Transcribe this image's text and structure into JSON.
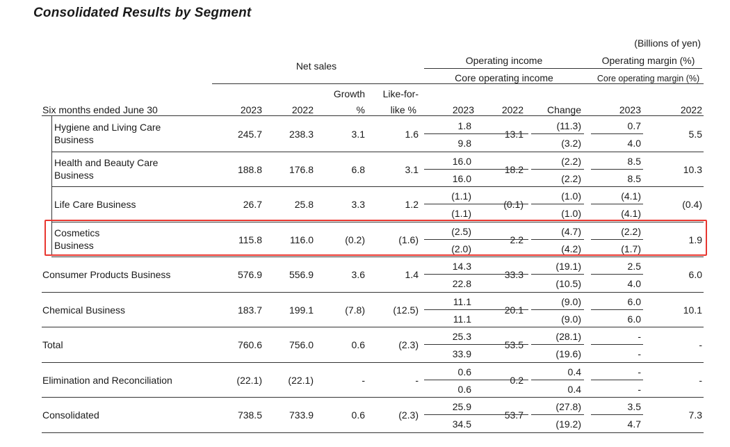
{
  "title": "Consolidated Results by Segment",
  "unit_note": "(Billions of yen)",
  "headers": {
    "net_sales": "Net sales",
    "operating_income": "Operating income",
    "core_operating_income": "Core operating income",
    "operating_margin": "Operating margin (%)",
    "core_operating_margin": "Core operating margin (%)",
    "growth_line1": "Growth",
    "growth_line2": "%",
    "lfl_line1": "Like-for-",
    "lfl_line2": "like %",
    "period": "Six months ended June 30",
    "y2023": "2023",
    "y2022": "2022",
    "oi_2023": "2023",
    "oi_2022": "2022",
    "change": "Change",
    "om_2023": "2023",
    "om_2022": "2022"
  },
  "rows": [
    {
      "label1": "Hygiene and Living Care",
      "label2": "Business",
      "ns2023": "245.7",
      "ns2022": "238.3",
      "growth": "3.1",
      "lfl": "1.6",
      "oi2023": "1.8",
      "coi2023": "9.8",
      "oi2022": "13.1",
      "change": "(11.3)",
      "core_change": "(3.2)",
      "om2023": "0.7",
      "com2023": "4.0",
      "om2022": "5.5"
    },
    {
      "label1": "Health and Beauty Care",
      "label2": "Business",
      "ns2023": "188.8",
      "ns2022": "176.8",
      "growth": "6.8",
      "lfl": "3.1",
      "oi2023": "16.0",
      "coi2023": "16.0",
      "oi2022": "18.2",
      "change": "(2.2)",
      "core_change": "(2.2)",
      "om2023": "8.5",
      "com2023": "8.5",
      "om2022": "10.3"
    },
    {
      "label1": "Life Care Business",
      "label2": "",
      "ns2023": "26.7",
      "ns2022": "25.8",
      "growth": "3.3",
      "lfl": "1.2",
      "oi2023": "(1.1)",
      "coi2023": "(1.1)",
      "oi2022": "(0.1)",
      "change": "(1.0)",
      "core_change": "(1.0)",
      "om2023": "(4.1)",
      "com2023": "(4.1)",
      "om2022": "(0.4)"
    },
    {
      "label1": "Cosmetics",
      "label2": "Business",
      "ns2023": "115.8",
      "ns2022": "116.0",
      "growth": "(0.2)",
      "lfl": "(1.6)",
      "oi2023": "(2.5)",
      "coi2023": "(2.0)",
      "oi2022": "2.2",
      "change": "(4.7)",
      "core_change": "(4.2)",
      "om2023": "(2.2)",
      "com2023": "(1.7)",
      "om2022": "1.9"
    },
    {
      "label1": "Consumer Products Business",
      "label2": "",
      "ns2023": "576.9",
      "ns2022": "556.9",
      "growth": "3.6",
      "lfl": "1.4",
      "oi2023": "14.3",
      "coi2023": "22.8",
      "oi2022": "33.3",
      "change": "(19.1)",
      "core_change": "(10.5)",
      "om2023": "2.5",
      "com2023": "4.0",
      "om2022": "6.0"
    },
    {
      "label1": "Chemical Business",
      "label2": "",
      "ns2023": "183.7",
      "ns2022": "199.1",
      "growth": "(7.8)",
      "lfl": "(12.5)",
      "oi2023": "11.1",
      "coi2023": "11.1",
      "oi2022": "20.1",
      "change": "(9.0)",
      "core_change": "(9.0)",
      "om2023": "6.0",
      "com2023": "6.0",
      "om2022": "10.1"
    },
    {
      "label1": "Total",
      "label2": "",
      "ns2023": "760.6",
      "ns2022": "756.0",
      "growth": "0.6",
      "lfl": "(2.3)",
      "oi2023": "25.3",
      "coi2023": "33.9",
      "oi2022": "53.5",
      "change": "(28.1)",
      "core_change": "(19.6)",
      "om2023": "-",
      "com2023": "-",
      "om2022": "-"
    },
    {
      "label1": "Elimination and Reconciliation",
      "label2": "",
      "ns2023": "(22.1)",
      "ns2022": "(22.1)",
      "growth": "-",
      "lfl": "-",
      "oi2023": "0.6",
      "coi2023": "0.6",
      "oi2022": "0.2",
      "change": "0.4",
      "core_change": "0.4",
      "om2023": "-",
      "com2023": "-",
      "om2022": "-"
    },
    {
      "label1": "Consolidated",
      "label2": "",
      "ns2023": "738.5",
      "ns2022": "733.9",
      "growth": "0.6",
      "lfl": "(2.3)",
      "oi2023": "25.9",
      "coi2023": "34.5",
      "oi2022": "53.7",
      "change": "(27.8)",
      "core_change": "(19.2)",
      "om2023": "3.5",
      "com2023": "4.7",
      "om2022": "7.3"
    }
  ]
}
